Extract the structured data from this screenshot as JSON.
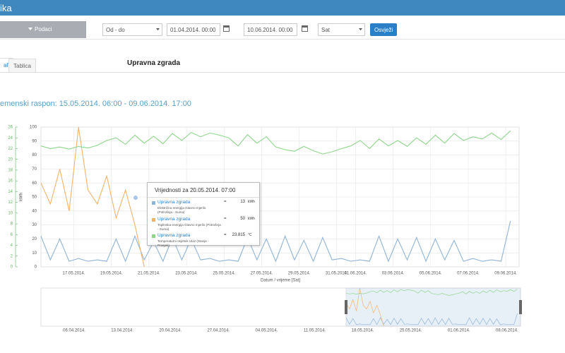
{
  "header": {
    "title": "ika"
  },
  "toolbar": {
    "data_button": "Podaci",
    "range_mode": "Od - do",
    "date_from": "01.04.2014. 00:00",
    "date_to": "10.06.2014. 00:00",
    "interval": "Sat",
    "refresh": "Osvježi"
  },
  "tabs": [
    "af",
    "Tablica"
  ],
  "page_title": "Upravna zgrada",
  "range_text": "emenski raspon: 15.05.2014. 06:00 - 09.06.2014. 17:00",
  "chart_data": {
    "type": "line",
    "x_label": "Datum / vrijeme [Sat]",
    "y_label": "kWh",
    "xlim": [
      0,
      25.46
    ],
    "xticks": [
      {
        "value": 1.75,
        "label": "17.05.2014."
      },
      {
        "value": 3.75,
        "label": "19.05.2014."
      },
      {
        "value": 5.75,
        "label": "21.05.2014."
      },
      {
        "value": 7.75,
        "label": "23.05.2014."
      },
      {
        "value": 9.75,
        "label": "25.05.2014."
      },
      {
        "value": 11.75,
        "label": "27.05.2014."
      },
      {
        "value": 13.75,
        "label": "29.05.2014."
      },
      {
        "value": 15.75,
        "label": "31.05.2014."
      },
      {
        "value": 16.75,
        "label": "01.06.2014."
      },
      {
        "value": 18.75,
        "label": "03.06.2014."
      },
      {
        "value": 20.75,
        "label": "05.06.2014."
      },
      {
        "value": 22.75,
        "label": "07.06.2014."
      },
      {
        "value": 24.75,
        "label": "09.06.2014."
      }
    ],
    "ylim": [
      0,
      100
    ],
    "yticks": [
      0,
      10,
      20,
      30,
      40,
      50,
      60,
      70,
      80,
      90,
      100
    ],
    "y2lim": [
      0,
      26
    ],
    "y2ticks": [
      0,
      2,
      4,
      6,
      8,
      10,
      12,
      14,
      16,
      18,
      20,
      22,
      24,
      26
    ],
    "y2color": "#5cb85c",
    "grid": true,
    "x": [
      0,
      0.5,
      1,
      1.5,
      2,
      2.5,
      3,
      3.5,
      4,
      4.5,
      5,
      5.5,
      6,
      6.5,
      7,
      7.5,
      8,
      8.5,
      9,
      9.5,
      10,
      10.5,
      11,
      11.5,
      12,
      12.5,
      13,
      13.5,
      14,
      14.5,
      15,
      15.5,
      16,
      16.5,
      17,
      17.5,
      18,
      18.5,
      19,
      19.5,
      20,
      20.5,
      21,
      21.5,
      22,
      22.5,
      23,
      23.5,
      24,
      24.5,
      25
    ],
    "series": [
      {
        "name": "Električna energija Glavno mjerilo (Potrošnja - Suma)",
        "color": "#8fb4d9",
        "values": [
          22,
          5,
          20,
          4,
          6,
          4,
          5,
          4,
          20,
          4,
          22,
          5,
          18,
          4,
          21,
          5,
          20,
          5,
          6,
          4,
          5,
          4,
          21,
          5,
          20,
          4,
          22,
          5,
          19,
          4,
          21,
          5,
          6,
          4,
          5,
          4,
          22,
          4,
          20,
          5,
          21,
          4,
          20,
          5,
          19,
          4,
          6,
          4,
          5,
          4,
          33
        ]
      },
      {
        "name": "Toplinska energija Glavno mjerilo (Potrošnja - Suma)",
        "color": "#f4b36b",
        "values": [
          60,
          45,
          70,
          40,
          100,
          55,
          45,
          65,
          35,
          55,
          30,
          0,
          null,
          null,
          null,
          null,
          null,
          null,
          null,
          null,
          null,
          null,
          null,
          null,
          null,
          null,
          null,
          null,
          null,
          null,
          null,
          null,
          null,
          null,
          null,
          null,
          null,
          null,
          null,
          null,
          null,
          null,
          null,
          null,
          null,
          null,
          null,
          null,
          null,
          null,
          null
        ]
      },
      {
        "name": "Temperaturni osjetnik Ulaz (Stanje - Prosjek)",
        "color": "#8ed68a",
        "axis": "y2",
        "values": [
          22.5,
          22.0,
          22.3,
          21.9,
          22.4,
          22.1,
          22.6,
          23.5,
          24.0,
          22.8,
          24.5,
          23.0,
          24.3,
          22.9,
          24.8,
          23.5,
          25.0,
          24.2,
          24.9,
          24.5,
          24.0,
          22.5,
          24.6,
          23.0,
          24.2,
          22.3,
          21.8,
          21.5,
          22.4,
          21.6,
          21.0,
          21.4,
          22.0,
          22.5,
          23.5,
          22.0,
          23.8,
          22.5,
          23.5,
          22.4,
          24.0,
          22.8,
          24.5,
          23.0,
          24.8,
          23.5,
          24.2,
          23.8,
          24.9,
          23.7,
          25.3
        ]
      }
    ]
  },
  "tooltip": {
    "title": "Vrijednosti za 20.05.2014. 07:00",
    "rows": [
      {
        "name": "Upravna zgrada",
        "desc": "Električna energija Glavno mjerilo (Potrošnja - Suma)",
        "eq": "=",
        "value": "13",
        "unit": "kWh"
      },
      {
        "name": "Upravna zgrada",
        "desc": "Toplinska energija Glavno mjerilo (Potrošnja - Suma)",
        "eq": "=",
        "value": "50",
        "unit": "kWh"
      },
      {
        "name": "Upravna zgrada",
        "desc": "Temperaturni osjetnik Ulaz (Stanje - Prosjek)",
        "eq": "=",
        "value": "23.815",
        "unit": "°C"
      }
    ]
  },
  "navigator": {
    "labels": [
      "06.04.2014.",
      "13.04.2014.",
      "20.04.2014.",
      "27.04.2014.",
      "04.05.2014.",
      "11.05.2014.",
      "18.05.2014.",
      "25.05.2014.",
      "01.06.2014.",
      "08.06.2014."
    ]
  }
}
